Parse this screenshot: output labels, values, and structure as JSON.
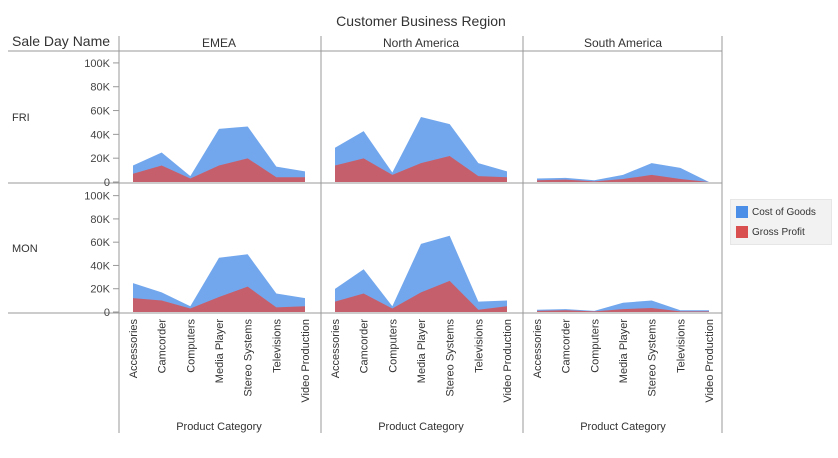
{
  "chart_data": {
    "type": "area",
    "title": "Customer Business Region",
    "row_field": "Sale Day Name",
    "xlabel": "Product Category",
    "categories": [
      "Accessories",
      "Camcorder",
      "Computers",
      "Media Player",
      "Stereo Systems",
      "Televisions",
      "Video Production"
    ],
    "columns": [
      "EMEA",
      "North America",
      "South America"
    ],
    "rows": [
      "FRI",
      "MON"
    ],
    "yticks": [
      {
        "value": 100000,
        "label": "100K"
      },
      {
        "value": 80000,
        "label": "80K"
      },
      {
        "value": 60000,
        "label": "60K"
      },
      {
        "value": 40000,
        "label": "40K"
      },
      {
        "value": 20000,
        "label": "20K"
      },
      {
        "value": 0,
        "label": "0"
      }
    ],
    "ylim": [
      0,
      110000
    ],
    "grid": false,
    "legend_position": "right",
    "series": [
      {
        "name": "Cost of Goods",
        "color": "#4a8ee8"
      },
      {
        "name": "Gross Profit",
        "color": "#d94f4f"
      }
    ],
    "panels": [
      {
        "row": "FRI",
        "column": "EMEA",
        "cost_of_goods": [
          14000,
          25000,
          5000,
          45000,
          47000,
          13000,
          9000
        ],
        "gross_profit": [
          7000,
          14000,
          3000,
          14000,
          20000,
          4000,
          4000
        ]
      },
      {
        "row": "FRI",
        "column": "North America",
        "cost_of_goods": [
          29000,
          43000,
          8000,
          55000,
          49000,
          16000,
          9000
        ],
        "gross_profit": [
          14000,
          20000,
          6000,
          16000,
          22000,
          5000,
          4000
        ]
      },
      {
        "row": "FRI",
        "column": "South America",
        "cost_of_goods": [
          3000,
          3500,
          1500,
          6000,
          16000,
          12000,
          0
        ],
        "gross_profit": [
          1500,
          2000,
          500,
          2500,
          6000,
          2500,
          0
        ]
      },
      {
        "row": "MON",
        "column": "EMEA",
        "cost_of_goods": [
          25000,
          17000,
          5000,
          47000,
          50000,
          16000,
          12000
        ],
        "gross_profit": [
          12000,
          10000,
          3000,
          13000,
          22000,
          4000,
          5000
        ]
      },
      {
        "row": "MON",
        "column": "North America",
        "cost_of_goods": [
          20000,
          37000,
          5000,
          59000,
          66000,
          9000,
          10000
        ],
        "gross_profit": [
          9000,
          16000,
          3000,
          17000,
          27000,
          2000,
          5000
        ]
      },
      {
        "row": "MON",
        "column": "South America",
        "cost_of_goods": [
          2000,
          2500,
          1000,
          8000,
          10000,
          1500,
          1500
        ],
        "gross_profit": [
          1000,
          1500,
          500,
          2500,
          3500,
          500,
          500
        ]
      }
    ]
  }
}
